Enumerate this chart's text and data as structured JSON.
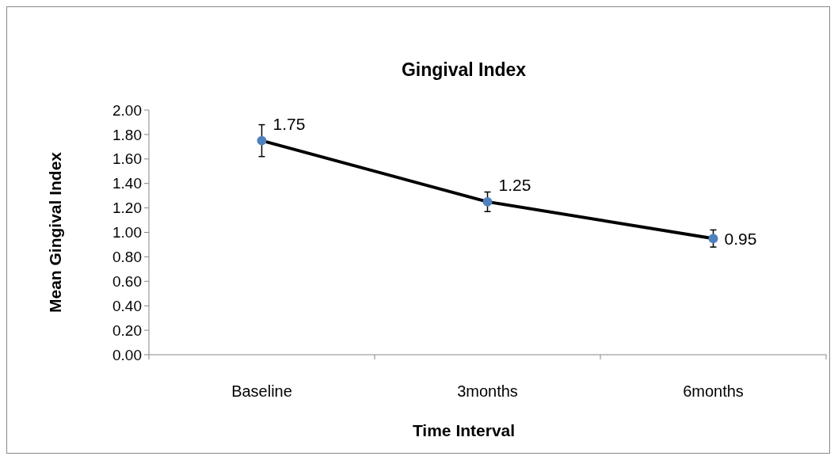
{
  "chart_data": {
    "type": "line",
    "title": "Gingival Index",
    "xlabel": "Time Interval",
    "ylabel": "Mean Gingival Index",
    "categories": [
      "Baseline",
      "3months",
      "6months"
    ],
    "series": [
      {
        "color": "#000000",
        "values": [
          1.75,
          1.25,
          0.95
        ],
        "errors": [
          0.13,
          0.08,
          0.07
        ]
      }
    ],
    "ylim": [
      0,
      2
    ],
    "yticks": [
      {
        "value": 0,
        "label": "0.00"
      },
      {
        "value": 0.2,
        "label": "0.20"
      },
      {
        "value": 0.4,
        "label": "0.40"
      },
      {
        "value": 0.6,
        "label": "0.60"
      },
      {
        "value": 0.8,
        "label": "0.80"
      },
      {
        "value": 1,
        "label": "1.00"
      },
      {
        "value": 1.2,
        "label": "1.20"
      },
      {
        "value": 1.4,
        "label": "1.40"
      },
      {
        "value": 1.6,
        "label": "1.60"
      },
      {
        "value": 1.8,
        "label": "1.80"
      },
      {
        "value": 2,
        "label": "2.00"
      }
    ],
    "data_labels": true,
    "marker": "circle",
    "line_style": "solid"
  }
}
